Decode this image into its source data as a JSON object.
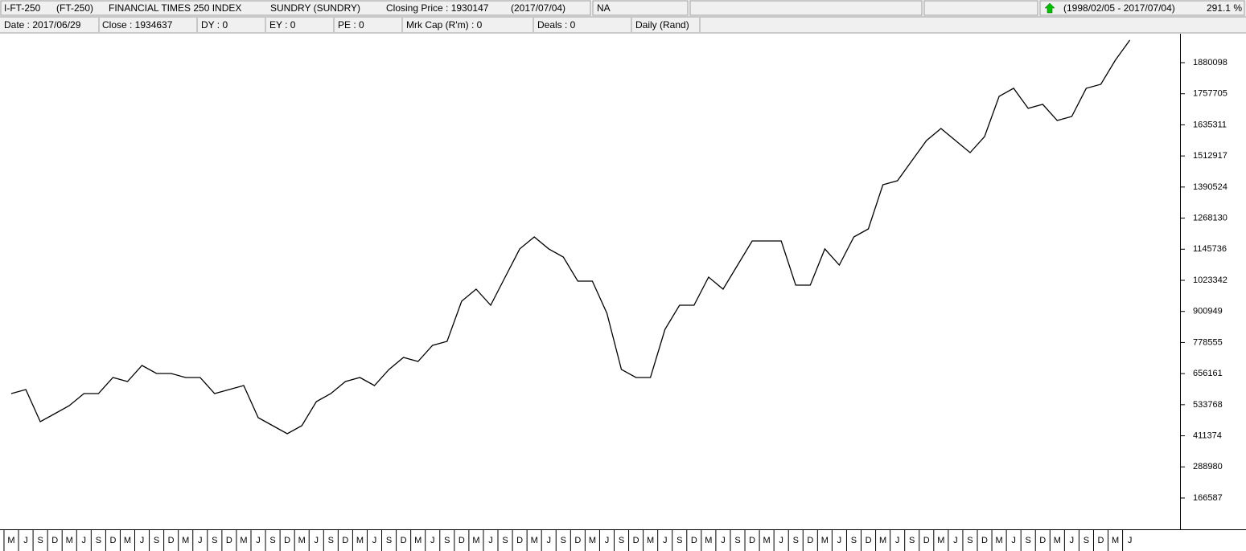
{
  "header": {
    "items": [
      "I-FT-250",
      "(FT-250)",
      "FINANCIAL TIMES 250 INDEX",
      "SUNDRY (SUNDRY)",
      "Closing Price : 1930147",
      "(2017/07/04)",
      "NA",
      "(1998/02/05 - 2017/07/04)",
      "291.1 %"
    ]
  },
  "info": {
    "items": [
      "Date : 2017/06/29",
      "Close : 1934637",
      "DY : 0",
      "EY : 0",
      "PE : 0",
      "Mrk Cap (R'm) : 0",
      "Deals : 0",
      "Daily (Rand)"
    ]
  },
  "chart_data": {
    "type": "line",
    "color": "#000000",
    "categories": [
      "M",
      "J",
      "S",
      "D",
      "M",
      "J",
      "S",
      "D",
      "M",
      "J",
      "S",
      "D",
      "M",
      "J",
      "S",
      "D",
      "M",
      "J",
      "S",
      "D",
      "M",
      "J",
      "S",
      "D",
      "M",
      "J",
      "S",
      "D",
      "M",
      "J",
      "S",
      "D",
      "M",
      "J",
      "S",
      "D",
      "M",
      "J",
      "S",
      "D",
      "M",
      "J",
      "S",
      "D",
      "M",
      "J",
      "S",
      "D",
      "M",
      "J",
      "S",
      "D",
      "M",
      "J",
      "S",
      "D",
      "M",
      "J",
      "S",
      "D",
      "M",
      "J",
      "S",
      "D",
      "M",
      "J",
      "S",
      "D",
      "M",
      "J",
      "S",
      "D",
      "M",
      "J",
      "S",
      "D",
      "M",
      "J"
    ],
    "values": [
      577600,
      593400,
      466900,
      498600,
      530200,
      577600,
      577600,
      640900,
      625100,
      688300,
      656700,
      656700,
      640900,
      640900,
      577600,
      593400,
      609200,
      482800,
      451100,
      419500,
      451100,
      546000,
      577600,
      625100,
      640900,
      609200,
      672500,
      719900,
      704100,
      767300,
      783100,
      941200,
      988700,
      925400,
      1036100,
      1146800,
      1194200,
      1146800,
      1115100,
      1020300,
      1020300,
      893800,
      672500,
      640900,
      640900,
      830600,
      925400,
      925400,
      1036100,
      988700,
      1083500,
      1178400,
      1178400,
      1178400,
      1004500,
      1004500,
      1146800,
      1083500,
      1194200,
      1225800,
      1399700,
      1415500,
      1494500,
      1573600,
      1621000,
      1573600,
      1526100,
      1589400,
      1747500,
      1779100,
      1700100,
      1715900,
      1652600,
      1668400,
      1779100,
      1794900,
      1889800,
      1968800
    ],
    "ylim": [
      46441,
      1993921
    ],
    "yticks": [
      166587,
      288980,
      411374,
      533768,
      656161,
      778555,
      900949,
      1023342,
      1145736,
      1268130,
      1390524,
      1512917,
      1635311,
      1757705,
      1880098
    ],
    "grid": false
  }
}
